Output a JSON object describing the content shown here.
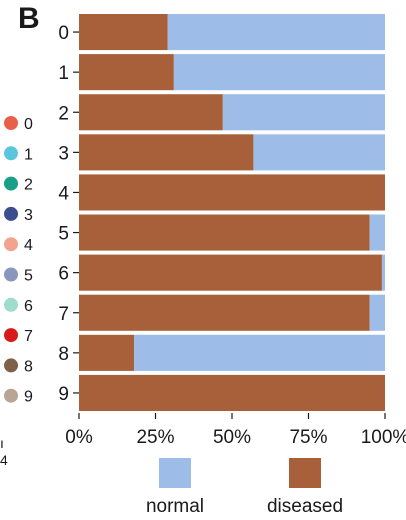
{
  "panel_label": "B",
  "cluster_legend": {
    "items": [
      {
        "label": "0",
        "color": "#E8604C"
      },
      {
        "label": "1",
        "color": "#5BC5DB"
      },
      {
        "label": "2",
        "color": "#17A085"
      },
      {
        "label": "3",
        "color": "#3B4D8F"
      },
      {
        "label": "4",
        "color": "#F2A38E"
      },
      {
        "label": "5",
        "color": "#8B96BE"
      },
      {
        "label": "6",
        "color": "#9FDCCB"
      },
      {
        "label": "7",
        "color": "#D7191C"
      },
      {
        "label": "8",
        "color": "#7E6148"
      },
      {
        "label": "9",
        "color": "#B8A596"
      }
    ]
  },
  "fragments": {
    "glyph1": "ı",
    "glyph2": "4"
  },
  "colors": {
    "normal": "#9DBCE8",
    "diseased": "#A8603B"
  },
  "chart_data": {
    "type": "bar",
    "orientation": "horizontal",
    "stacked": true,
    "categories": [
      "0",
      "1",
      "2",
      "3",
      "4",
      "5",
      "6",
      "7",
      "8",
      "9"
    ],
    "series": [
      {
        "name": "diseased",
        "values": [
          29,
          31,
          47,
          57,
          100,
          95,
          99,
          95,
          18,
          100
        ]
      },
      {
        "name": "normal",
        "values": [
          71,
          69,
          53,
          43,
          0,
          5,
          1,
          5,
          82,
          0
        ]
      }
    ],
    "xlim": [
      0,
      100
    ],
    "xticks": [
      "0%",
      "25%",
      "50%",
      "75%",
      "100%"
    ],
    "xlabel": "",
    "ylabel": "",
    "title": "",
    "legend": {
      "position": "bottom",
      "entries": [
        "normal",
        "diseased"
      ]
    }
  }
}
